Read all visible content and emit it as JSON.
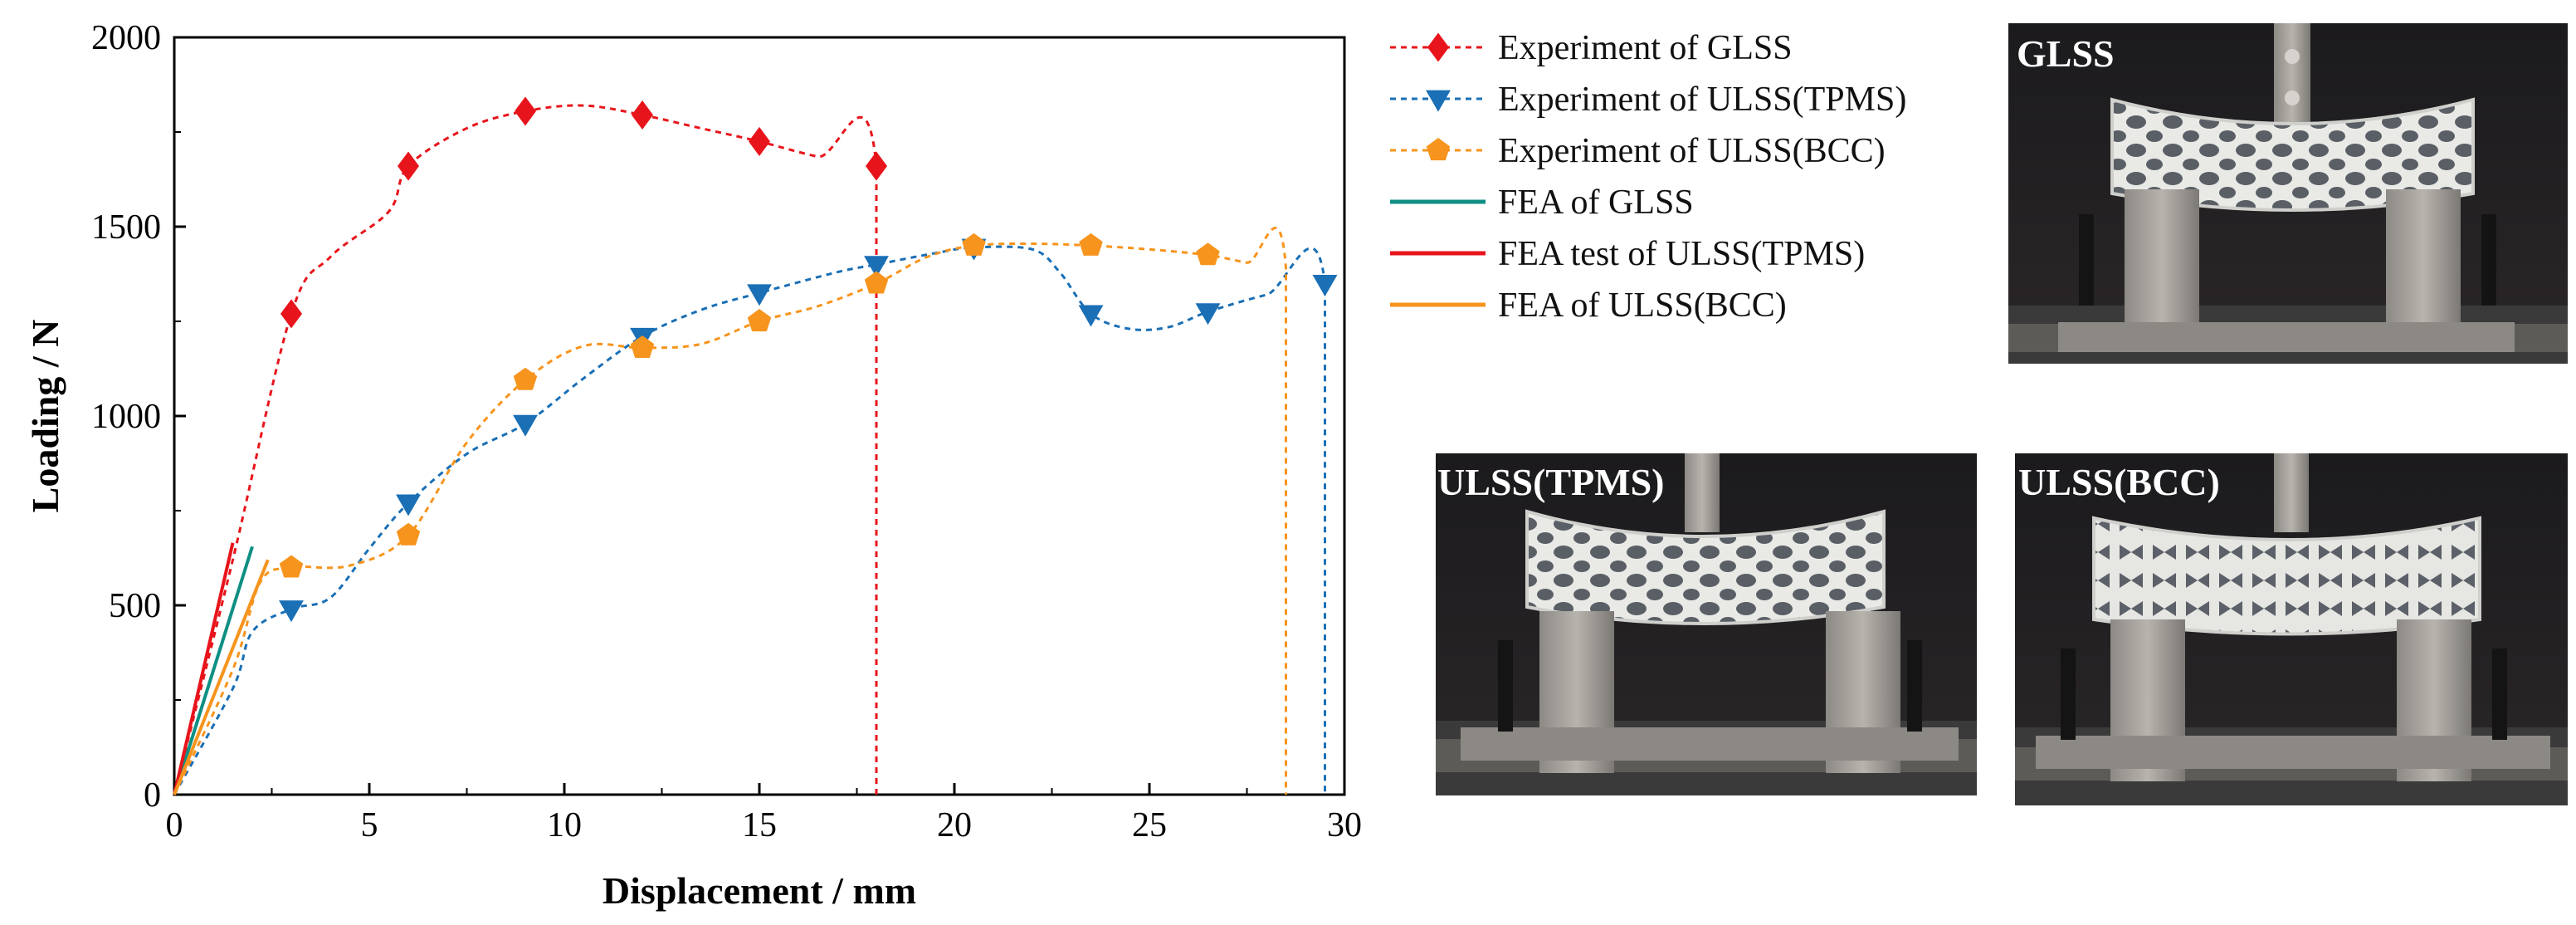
{
  "chart_data": {
    "type": "line",
    "title": "",
    "xlabel": "Displacement / mm",
    "ylabel": "Loading / N",
    "xlim": [
      0,
      30
    ],
    "ylim": [
      0,
      2000
    ],
    "x_ticks": [
      0,
      5,
      10,
      15,
      20,
      25,
      30
    ],
    "y_ticks": [
      0,
      500,
      1000,
      1500,
      2000
    ],
    "grid": false,
    "legend_position": "right",
    "series": [
      {
        "name": "Experiment of GLSS",
        "style": "dashed",
        "marker": "diamond",
        "color": "#e8141b",
        "curve": [
          [
            0,
            0
          ],
          [
            1.5,
            620
          ],
          [
            3,
            1270
          ],
          [
            4,
            1420
          ],
          [
            5.5,
            1540
          ],
          [
            6,
            1660
          ],
          [
            7.5,
            1760
          ],
          [
            9,
            1805
          ],
          [
            10.5,
            1820
          ],
          [
            12,
            1795
          ],
          [
            13.5,
            1760
          ],
          [
            15,
            1725
          ],
          [
            16.5,
            1685
          ],
          [
            18,
            1660
          ],
          [
            18,
            0
          ]
        ],
        "markers": [
          [
            3,
            1270
          ],
          [
            6,
            1660
          ],
          [
            9,
            1805
          ],
          [
            12,
            1795
          ],
          [
            15,
            1725
          ],
          [
            18,
            1660
          ]
        ]
      },
      {
        "name": "Experiment of ULSS(TPMS)",
        "style": "dashed",
        "marker": "triangle-down",
        "color": "#1a6fb5",
        "curve": [
          [
            0,
            0
          ],
          [
            1.5,
            280
          ],
          [
            2,
            430
          ],
          [
            3,
            490
          ],
          [
            4,
            520
          ],
          [
            5,
            650
          ],
          [
            6,
            770
          ],
          [
            7.5,
            900
          ],
          [
            9,
            980
          ],
          [
            10.5,
            1100
          ],
          [
            12,
            1210
          ],
          [
            13.5,
            1280
          ],
          [
            15,
            1325
          ],
          [
            17,
            1380
          ],
          [
            18,
            1400
          ],
          [
            19.5,
            1430
          ],
          [
            20.5,
            1445
          ],
          [
            22,
            1440
          ],
          [
            22.7,
            1380
          ],
          [
            23.5,
            1270
          ],
          [
            24.5,
            1230
          ],
          [
            25.5,
            1235
          ],
          [
            26.5,
            1275
          ],
          [
            28,
            1320
          ],
          [
            29.5,
            1350
          ],
          [
            29.5,
            0
          ]
        ],
        "markers": [
          [
            3,
            490
          ],
          [
            6,
            770
          ],
          [
            9,
            980
          ],
          [
            12,
            1210
          ],
          [
            15,
            1325
          ],
          [
            18,
            1400
          ],
          [
            20.5,
            1445
          ],
          [
            23.5,
            1270
          ],
          [
            26.5,
            1275
          ],
          [
            29.5,
            1350
          ]
        ]
      },
      {
        "name": "Experiment of ULSS(BCC)",
        "style": "dashed",
        "marker": "pentagon",
        "color": "#f7941d",
        "curve": [
          [
            0,
            0
          ],
          [
            1.5,
            330
          ],
          [
            2.2,
            560
          ],
          [
            3,
            600
          ],
          [
            4.5,
            605
          ],
          [
            6,
            685
          ],
          [
            7.5,
            930
          ],
          [
            9,
            1095
          ],
          [
            10.5,
            1185
          ],
          [
            12,
            1180
          ],
          [
            13.5,
            1190
          ],
          [
            15,
            1250
          ],
          [
            16.5,
            1290
          ],
          [
            18,
            1350
          ],
          [
            19.3,
            1420
          ],
          [
            20.5,
            1450
          ],
          [
            22,
            1455
          ],
          [
            23.5,
            1450
          ],
          [
            25,
            1440
          ],
          [
            26.5,
            1425
          ],
          [
            27.5,
            1405
          ],
          [
            28.5,
            1390
          ],
          [
            28.5,
            0
          ]
        ],
        "markers": [
          [
            3,
            600
          ],
          [
            6,
            685
          ],
          [
            9,
            1095
          ],
          [
            12,
            1180
          ],
          [
            15,
            1250
          ],
          [
            18,
            1350
          ],
          [
            20.5,
            1450
          ],
          [
            23.5,
            1450
          ],
          [
            26.5,
            1425
          ]
        ]
      },
      {
        "name": "FEA of GLSS",
        "style": "solid",
        "color": "#0e8f83",
        "curve": [
          [
            0,
            0
          ],
          [
            2,
            655
          ]
        ]
      },
      {
        "name": "FEA test of ULSS(TPMS)",
        "style": "solid",
        "color": "#e8141b",
        "curve": [
          [
            0,
            0
          ],
          [
            1.5,
            665
          ]
        ]
      },
      {
        "name": "FEA of ULSS(BCC)",
        "style": "solid",
        "color": "#f7941d",
        "curve": [
          [
            0,
            0
          ],
          [
            2.4,
            620
          ]
        ]
      }
    ]
  },
  "photos": [
    {
      "label": "GLSS"
    },
    {
      "label": "ULSS(TPMS)"
    },
    {
      "label": "ULSS(BCC)"
    }
  ]
}
